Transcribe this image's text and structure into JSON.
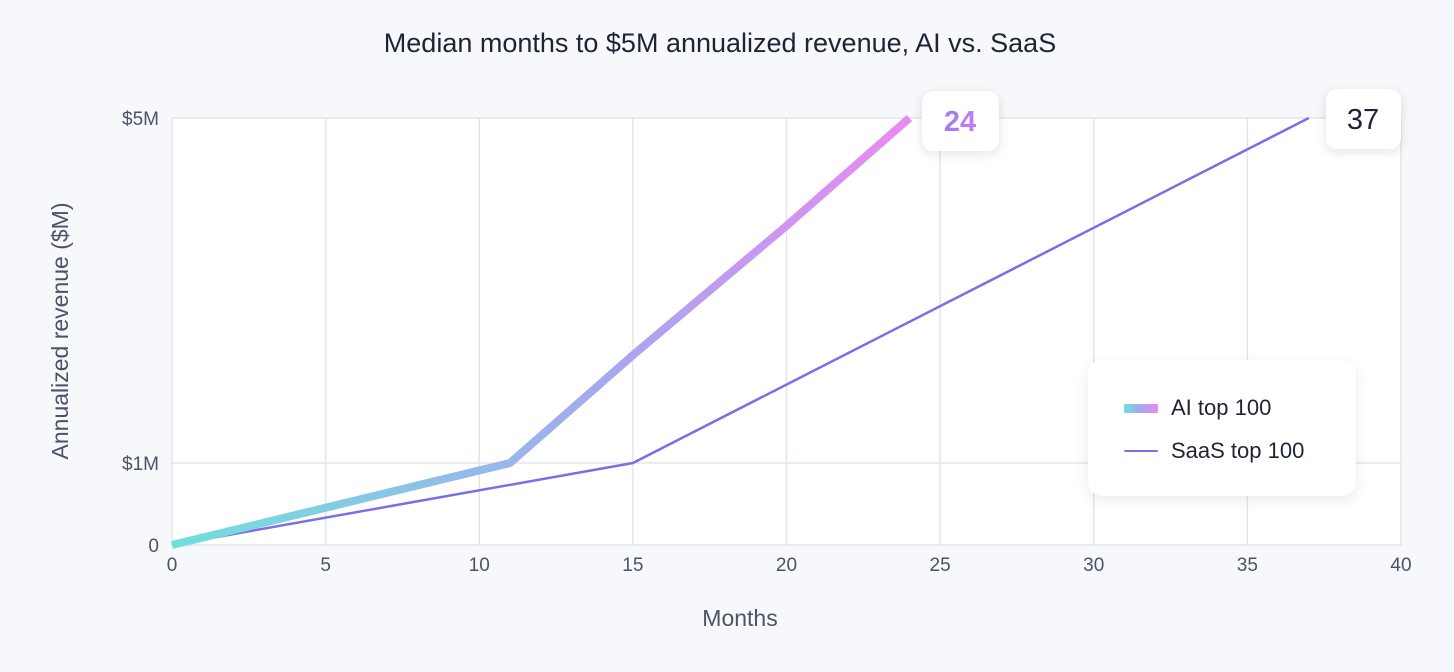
{
  "chart_data": {
    "type": "line",
    "title": "Median months to $5M annualized revenue, AI vs. SaaS",
    "xlabel": "Months",
    "ylabel": "Annualized revenue ($M)",
    "xlim": [
      0,
      40
    ],
    "ylim": [
      0,
      5
    ],
    "grid": true,
    "x_ticks": [
      0,
      5,
      10,
      15,
      20,
      25,
      30,
      35,
      40
    ],
    "y_ticks": [
      {
        "value": 0,
        "label": "0"
      },
      {
        "value": 1,
        "label": "$1M"
      },
      {
        "value": 5,
        "label": "$5M"
      }
    ],
    "series": [
      {
        "name": "AI top 100",
        "points": [
          [
            0,
            0
          ],
          [
            11,
            1
          ],
          [
            15,
            2.25
          ],
          [
            20,
            3.75
          ],
          [
            24,
            5
          ]
        ],
        "end_label": "24",
        "color_start": "#6fe0dc",
        "color_mid": "#a8a6f0",
        "color_end": "#e98af0"
      },
      {
        "name": "SaaS top 100",
        "points": [
          [
            0,
            0
          ],
          [
            15,
            1
          ],
          [
            37,
            5
          ]
        ],
        "end_label": "37",
        "color": "#7b6ee8"
      }
    ],
    "legend_position": "right"
  }
}
